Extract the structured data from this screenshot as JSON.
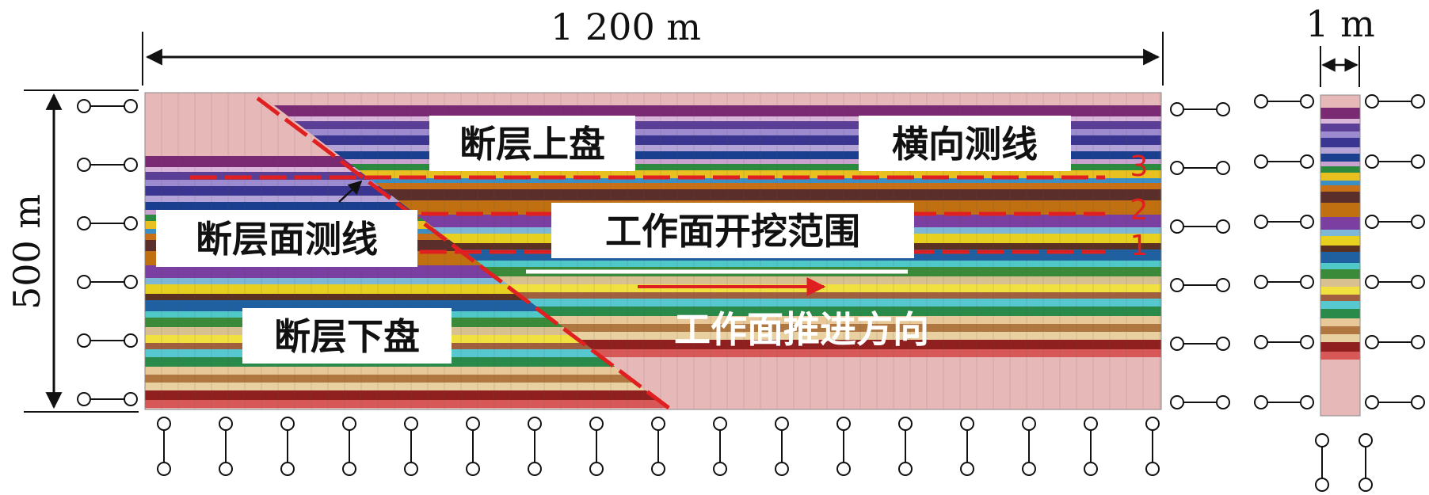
{
  "dimensions": {
    "width": "1 200 m",
    "height": "500 m",
    "column_width": "1 m"
  },
  "labels": {
    "hanging_wall": "断层上盘",
    "footwall": "断层下盘",
    "transverse_line": "横向测线",
    "fault_surface_line": "断层面测线",
    "excavation_range": "工作面开挖范围",
    "advance_direction": "工作面推进方向"
  },
  "survey_lines": [
    {
      "number": "3"
    },
    {
      "number": "2"
    },
    {
      "number": "1"
    }
  ],
  "colors": {
    "fault_line": "#e02020",
    "survey_line": "#e02020",
    "bedrock": "#dc5a5a",
    "top_soil": "#e6b8b8",
    "excavation_marker": "#ffffff",
    "advance_arrow": "#e02020"
  },
  "strata_palette": [
    "#e6b8b8",
    "#7a2a72",
    "#d9b5d9",
    "#5b3e95",
    "#9d8bd0",
    "#3a3590",
    "#b3a3d6",
    "#1b3f8f",
    "#c9a2cf",
    "#2b8a3e",
    "#e8c020",
    "#3b8fc4",
    "#c87018",
    "#5a2e2a",
    "#c07010",
    "#7a3fa0",
    "#7fb8d6",
    "#e8d020",
    "#5a3020",
    "#2060a0",
    "#50c8c8",
    "#3a8a3a",
    "#d8c090",
    "#f0e040",
    "#a06040",
    "#58c8d0",
    "#2a8a4a",
    "#e8c898",
    "#b07840",
    "#e8d0a0",
    "#902020",
    "#d85858"
  ],
  "boundary_supports": {
    "left": 6,
    "right": 6,
    "bottom": 17,
    "column_left": 6,
    "column_right": 6,
    "column_bottom": 2
  }
}
